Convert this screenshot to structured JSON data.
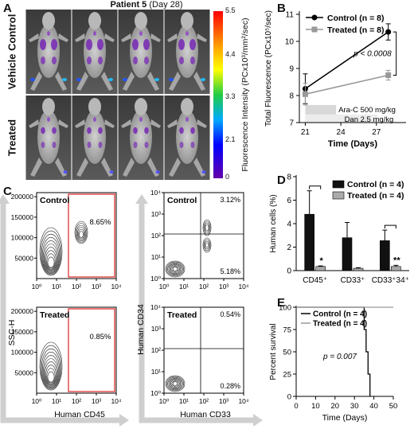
{
  "panels": {
    "A": {
      "letter": "A",
      "title": "Patient 5",
      "subtitle": "(Day 28)",
      "row_labels": [
        "Vehicle Control",
        "Treated"
      ],
      "colorbar": {
        "label": "Fluorescence Intensity (PCx10³/mm²/sec)",
        "ticks": [
          "5.5",
          "4.4",
          "3.3",
          "2.1",
          "0"
        ],
        "colors": [
          "#ff0000",
          "#ff9900",
          "#ffff00",
          "#22cc44",
          "#00aaff",
          "#0000ff",
          "#6600aa"
        ]
      }
    },
    "B": {
      "letter": "B"
    },
    "C": {
      "letter": "C",
      "plots": [
        {
          "name": "Control",
          "gate": "8.65%"
        },
        {
          "name": "Control",
          "q_top": "3.12%",
          "q_bottom": "5.18%"
        },
        {
          "name": "Treated",
          "gate": "0.85%"
        },
        {
          "name": "Treated",
          "q_top": "0.54%",
          "q_bottom": "0.28%"
        }
      ],
      "x_left": "Human CD45",
      "x_right": "Human CD33",
      "y_left": "SSC-H",
      "y_right": "Human CD34",
      "ssc_ticks": [
        "50000",
        "100000",
        "150000",
        "200000"
      ],
      "log_ticks": [
        "10⁰",
        "10¹",
        "10²",
        "10³",
        "10⁴"
      ]
    },
    "D": {
      "letter": "D"
    },
    "E": {
      "letter": "E"
    }
  },
  "chart_data": [
    {
      "id": "B",
      "type": "line",
      "ylabel": "Total Fluorescence (PCx10⁵/sec)",
      "xlabel": "Time (Days)",
      "x": [
        21,
        28
      ],
      "xticks": [
        21,
        24,
        27
      ],
      "yticks": [
        7,
        8,
        9,
        10,
        11
      ],
      "xlim": [
        20.5,
        29.5
      ],
      "ylim": [
        7,
        11
      ],
      "series": [
        {
          "name": "Control (n = 8)",
          "values": [
            8.25,
            10.35
          ],
          "err": [
            0.55,
            0.3
          ],
          "color": "#000000"
        },
        {
          "name": "Treated (n = 8)",
          "values": [
            8.05,
            8.75
          ],
          "err": [
            0.4,
            0.18
          ],
          "color": "#999999"
        }
      ],
      "annotation": "p < 0.0008",
      "treatments": [
        "Ara-C 500 mg/kg",
        "Dan 2.5 mg/kg"
      ]
    },
    {
      "id": "D",
      "type": "bar",
      "ylabel": "Human cells (%)",
      "categories": [
        "CD45⁺",
        "CD33⁺",
        "CD33⁺34⁺"
      ],
      "yticks": [
        0,
        2,
        4,
        6,
        8
      ],
      "ylim": [
        0,
        8
      ],
      "series": [
        {
          "name": "Control (n = 4)",
          "values": [
            4.8,
            2.8,
            2.55
          ],
          "err": [
            2.0,
            1.3,
            0.9
          ],
          "color": "#111111"
        },
        {
          "name": "Treated (n = 4)",
          "values": [
            0.35,
            0.2,
            0.35
          ],
          "err": [
            0.05,
            0.05,
            0.1
          ],
          "color": "#aaaaaa"
        }
      ],
      "significance": [
        "*",
        "",
        "**"
      ]
    },
    {
      "id": "E",
      "type": "line",
      "ylabel": "Percent survival",
      "xlabel": "Time (Days)",
      "xticks": [
        0,
        10,
        20,
        30,
        40,
        50
      ],
      "yticks": [
        0,
        25,
        50,
        75,
        100
      ],
      "xlim": [
        0,
        50
      ],
      "ylim": [
        0,
        100
      ],
      "series": [
        {
          "name": "Control (n = 4)",
          "color": "#000000",
          "points": [
            [
              0,
              100
            ],
            [
              35,
              100
            ],
            [
              35,
              75
            ],
            [
              36,
              75
            ],
            [
              36,
              50
            ],
            [
              37,
              50
            ],
            [
              37,
              25
            ],
            [
              38,
              25
            ],
            [
              38,
              0
            ]
          ]
        },
        {
          "name": "Treated (n = 4)",
          "color": "#999999",
          "points": [
            [
              0,
              100
            ],
            [
              50,
              100
            ]
          ]
        }
      ],
      "annotation": "p = 0.007"
    }
  ]
}
